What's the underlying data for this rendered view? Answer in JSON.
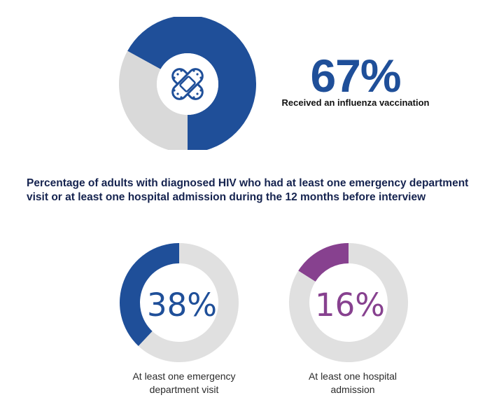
{
  "influenza": {
    "percent_text": "67%",
    "caption": "Received an influenza vaccination",
    "value": 67,
    "icon": "bandage-icon"
  },
  "heading": "Percentage of adults with diagnosed HIV who had at least one emergency department visit or at least one hospital admission during the 12 months before interview",
  "chart_data": [
    {
      "type": "pie",
      "categories": [
        "Received an influenza vaccination",
        ""
      ],
      "values": [
        67,
        33
      ],
      "colors": [
        "#1f4f99",
        "#d9d9d9"
      ],
      "title": "",
      "label": "67%"
    },
    {
      "type": "pie",
      "categories": [
        "At least one emergency department visit",
        ""
      ],
      "values": [
        38,
        62
      ],
      "colors": [
        "#1f4f99",
        "#e0e0e0"
      ],
      "title": "",
      "label": "38%"
    },
    {
      "type": "pie",
      "categories": [
        "At least one hospital admission",
        ""
      ],
      "values": [
        16,
        84
      ],
      "colors": [
        "#87418f",
        "#e0e0e0"
      ],
      "title": "",
      "label": "16%"
    }
  ],
  "ed_visit": {
    "percent_text": "38%",
    "caption_line1": "At least one emergency",
    "caption_line2": "department visit",
    "value": 38,
    "color": "#1f4f99"
  },
  "hospital": {
    "percent_text": "16%",
    "caption_line1": "At least one hospital",
    "caption_line2": "admission",
    "value": 16,
    "color": "#87418f"
  },
  "colors": {
    "blue": "#1f4f99",
    "purple": "#87418f",
    "track": "#e0e0e0",
    "heading": "#15234f"
  }
}
